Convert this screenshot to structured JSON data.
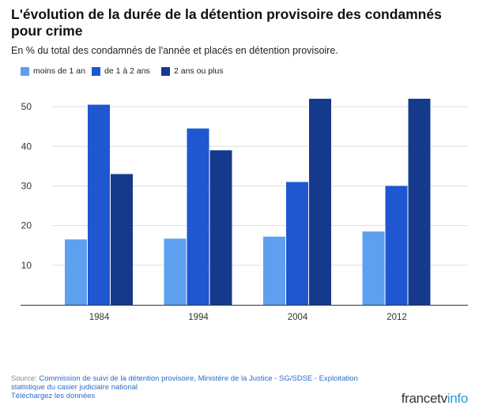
{
  "header": {
    "title": "L'évolution de la durée de la détention provisoire des condamnés pour crime",
    "subtitle": "En % du total des condamnés de l'année et placés en détention provisoire."
  },
  "footer": {
    "source_prefix": "Source:",
    "source_text": "Commission de suivi de la détention provisoire, Ministère de la Justice - SG/SDSE - Exploitation statistique du casier judiciaire national",
    "download_label": "Téléchargez les données",
    "logo_part1": "francetv",
    "logo_part2": "info"
  },
  "colors": {
    "series1": "#5ea0f0",
    "series2": "#1f57d3",
    "series3": "#153a8c",
    "grid": "#dddddd",
    "axis": "#333333"
  },
  "chart_data": {
    "type": "bar",
    "title": "L'évolution de la durée de la détention provisoire des condamnés pour crime",
    "subtitle": "En % du total des condamnés de l'année et placés en détention provisoire.",
    "categories": [
      "1984",
      "1994",
      "2004",
      "2012"
    ],
    "series": [
      {
        "name": "moins de 1 an",
        "values": [
          16.5,
          16.7,
          17.2,
          18.5
        ]
      },
      {
        "name": "de 1 à 2 ans",
        "values": [
          50.5,
          44.5,
          31.0,
          30.0
        ]
      },
      {
        "name": "2 ans ou plus",
        "values": [
          33.0,
          39.0,
          52.0,
          52.0
        ]
      }
    ],
    "ylim": [
      0,
      55
    ],
    "yticks": [
      10,
      20,
      30,
      40,
      50
    ],
    "grid": true,
    "legend_position": "top-left"
  }
}
